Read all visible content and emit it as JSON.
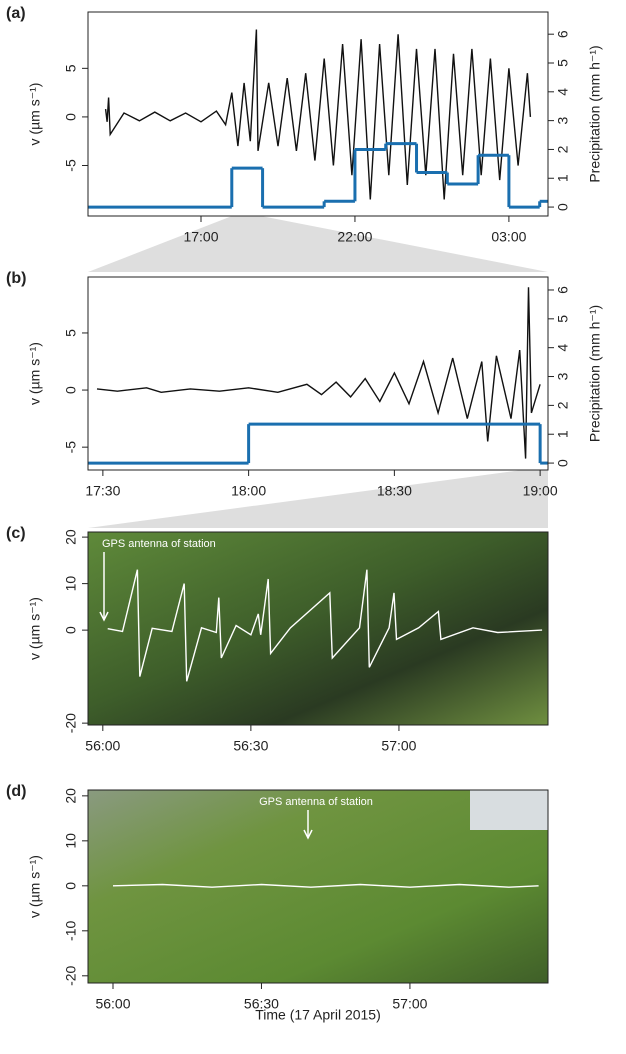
{
  "chart_data": [
    {
      "label": "(a)",
      "type": "line",
      "ylabel": "v (µm s⁻¹)",
      "y2label": "Precipitation (mm h⁻¹)",
      "xlim": [
        13.33,
        28.27
      ],
      "xticks": [
        {
          "value": 17,
          "label": "17:00"
        },
        {
          "value": 22,
          "label": "22:00"
        },
        {
          "value": 27,
          "label": "03:00"
        }
      ],
      "ylim": [
        -10.2,
        10.8
      ],
      "yticks": [
        -5,
        0,
        5
      ],
      "y2lim": [
        -0.31,
        6.77
      ],
      "y2ticks": [
        0,
        1,
        2,
        3,
        4,
        5,
        6
      ],
      "series": [
        {
          "color": "#111111",
          "x": [
            13.9,
            13.95,
            14.0,
            14.05,
            14.5,
            15,
            15.5,
            16,
            16.5,
            17,
            17.5,
            17.8,
            18.0,
            18.2,
            18.4,
            18.6,
            18.8,
            18.85,
            19.2,
            19.5,
            19.8,
            20.1,
            20.4,
            20.7,
            21.0,
            21.3,
            21.6,
            21.9,
            22.2,
            22.5,
            22.8,
            23.1,
            23.4,
            23.7,
            24,
            24.3,
            24.6,
            24.9,
            25.2,
            25.5,
            25.8,
            26.1,
            26.4,
            26.7,
            27,
            27.3,
            27.6,
            27.7
          ],
          "values": [
            0.8,
            -0.5,
            2.0,
            -1.8,
            0.4,
            -0.4,
            0.5,
            -0.4,
            0.4,
            -0.5,
            0.6,
            -0.8,
            2.5,
            -3,
            3.5,
            -2.5,
            9,
            -3.5,
            3.5,
            -3,
            4,
            -3.5,
            4.5,
            -4.5,
            6,
            -5,
            7.5,
            -6,
            8,
            -8.5,
            7.5,
            -6,
            8.5,
            -7,
            7,
            -6,
            7,
            -8.5,
            6.5,
            -6,
            7,
            -6,
            6,
            -6.5,
            5,
            -5,
            4.5,
            0
          ]
        },
        {
          "color": "#1a6faf",
          "axis": "y2",
          "step": "post",
          "x": [
            13.33,
            18,
            19,
            21,
            22,
            23,
            24,
            25,
            26,
            27,
            28
          ],
          "values": [
            0,
            1.35,
            0,
            0.2,
            2.0,
            2.2,
            1.2,
            0.8,
            1.8,
            0,
            0.2
          ]
        }
      ]
    },
    {
      "label": "(b)",
      "type": "line",
      "ylabel": "v (µm s⁻¹)",
      "y2label": "Precipitation (mm h⁻¹)",
      "xlim": [
        17.449,
        19.027
      ],
      "xticks": [
        {
          "value": 17.5,
          "label": "17:30"
        },
        {
          "value": 18,
          "label": "18:00"
        },
        {
          "value": 18.5,
          "label": "18:30"
        },
        {
          "value": 19,
          "label": "19:00"
        }
      ],
      "ylim": [
        -7.0,
        9.9
      ],
      "yticks": [
        -5,
        0,
        5
      ],
      "y2lim": [
        -0.24,
        6.45
      ],
      "y2ticks": [
        0,
        1,
        2,
        3,
        4,
        5,
        6
      ],
      "series": [
        {
          "color": "#111111",
          "x": [
            17.48,
            17.55,
            17.65,
            17.7,
            17.8,
            17.9,
            18.0,
            18.1,
            18.2,
            18.25,
            18.3,
            18.35,
            18.4,
            18.45,
            18.5,
            18.55,
            18.6,
            18.65,
            18.7,
            18.75,
            18.8,
            18.82,
            18.85,
            18.9,
            18.93,
            18.95,
            18.96,
            18.97,
            19.0
          ],
          "values": [
            0.1,
            -0.1,
            0.2,
            -0.2,
            0.1,
            -0.1,
            0.2,
            -0.2,
            0.5,
            -0.4,
            0.7,
            -0.6,
            1,
            -1,
            1.5,
            -1.2,
            2.5,
            -2,
            2.8,
            -2.5,
            2.5,
            -4.5,
            3,
            -2.5,
            3.5,
            -6,
            9,
            -2,
            0.5
          ]
        },
        {
          "color": "#1a6faf",
          "axis": "y2",
          "step": "post",
          "x": [
            17.449,
            18,
            19
          ],
          "values": [
            0,
            1.35,
            0
          ]
        }
      ]
    },
    {
      "label": "(c)",
      "type": "line",
      "ylabel": "v (µm s⁻¹)",
      "annotation": "GPS antenna of station",
      "xlim": [
        -3,
        90.2
      ],
      "xticks": [
        {
          "value": 0,
          "label": "56:00"
        },
        {
          "value": 30,
          "label": "56:30"
        },
        {
          "value": 60,
          "label": "57:00"
        }
      ],
      "ylim": [
        -20.4,
        21.1
      ],
      "yticks": [
        -20,
        0,
        10,
        20
      ],
      "series": [
        {
          "color": "#ffffff",
          "x": [
            1,
            4,
            7,
            7.5,
            10,
            14,
            16.5,
            17,
            20,
            23,
            23.5,
            24,
            27,
            30,
            31.5,
            32,
            33.5,
            34,
            38,
            46,
            46.5,
            52,
            53.5,
            54,
            58,
            59,
            59.5,
            64,
            68,
            68.5,
            75,
            80,
            89
          ],
          "values": [
            0.3,
            -0.3,
            13,
            -10,
            0.4,
            -0.3,
            10,
            -11,
            0.5,
            -0.5,
            7,
            -6,
            1,
            -1,
            3.5,
            -1,
            11,
            -5,
            0.5,
            8,
            -6,
            0.5,
            13,
            -8,
            0.5,
            8,
            -2,
            0.5,
            4,
            -2,
            0.5,
            -0.5,
            0
          ]
        }
      ]
    },
    {
      "label": "(d)",
      "type": "line",
      "ylabel": "v (µm s⁻¹)",
      "annotation": "GPS antenna of station",
      "xlabel": "Time  (17 April 2015)",
      "xlim": [
        -5.05,
        87.9
      ],
      "xticks": [
        {
          "value": 0,
          "label": "56:00"
        },
        {
          "value": 30,
          "label": "56:30"
        },
        {
          "value": 60,
          "label": "57:00"
        }
      ],
      "ylim": [
        -21.6,
        21.3
      ],
      "yticks": [
        -20,
        -10,
        0,
        10,
        20
      ],
      "series": [
        {
          "color": "#ffffff",
          "x": [
            0,
            10,
            20,
            30,
            40,
            50,
            60,
            70,
            80,
            86
          ],
          "values": [
            0,
            0.3,
            -0.3,
            0.3,
            -0.3,
            0.3,
            -0.3,
            0.3,
            -0.3,
            0
          ]
        }
      ]
    }
  ]
}
